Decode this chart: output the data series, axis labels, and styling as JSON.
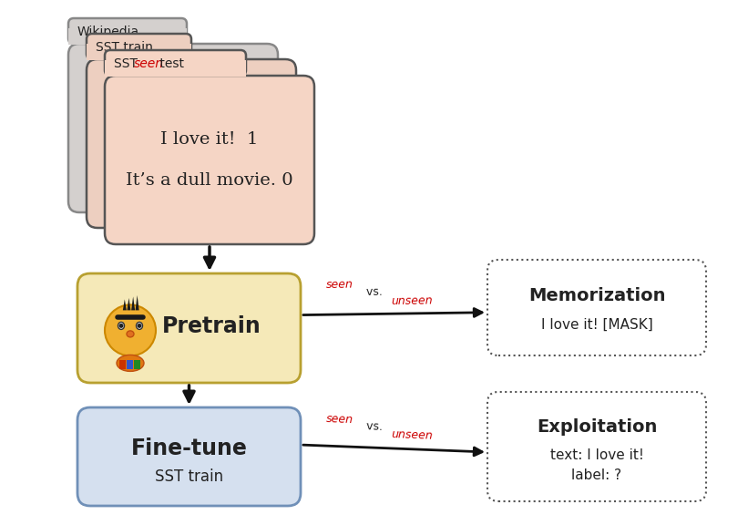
{
  "bg_color": "#ffffff",
  "folder_back2_color": "#d4d0ce",
  "folder_back1_color": "#edcfc0",
  "folder_front_color": "#f5d5c5",
  "folder_edge_color": "#555555",
  "folder_back2_edge": "#888888",
  "folder_tab_labels": [
    "Wikipedia",
    "SST train",
    "SST seen test"
  ],
  "folder_content": [
    "I love it!  1",
    "It’s a dull movie. 0"
  ],
  "pretrain_box_color": "#f5e9b8",
  "pretrain_edge_color": "#b8a030",
  "pretrain_label": "Pretrain",
  "finetune_box_color": "#d5e0ef",
  "finetune_edge_color": "#7090b8",
  "finetune_label": "Fine-tune",
  "finetune_sublabel": "SST train",
  "memo_label": "Memorization",
  "memo_content": "I love it! [MASK]",
  "exploit_label": "Exploitation",
  "exploit_line1": "text: I love it!",
  "exploit_line2": "label: ?",
  "dashed_edge_color": "#555555",
  "arrow_color": "#111111",
  "seen_color": "#cc0000",
  "dark_color": "#222222"
}
